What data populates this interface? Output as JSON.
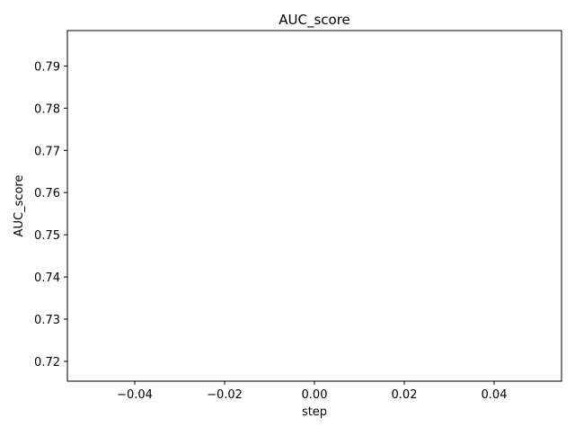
{
  "chart_data": {
    "type": "line",
    "title": "AUC_score",
    "xlabel": "step",
    "ylabel": "AUC_score",
    "xlim": [
      -0.055,
      0.055
    ],
    "ylim": [
      0.7153,
      0.7984
    ],
    "x_ticks": [
      -0.04,
      -0.02,
      0.0,
      0.02,
      0.04
    ],
    "x_tick_labels": [
      "−0.04",
      "−0.02",
      "0.00",
      "0.02",
      "0.04"
    ],
    "y_ticks": [
      0.72,
      0.73,
      0.74,
      0.75,
      0.76,
      0.77,
      0.78,
      0.79
    ],
    "y_tick_labels": [
      "0.72",
      "0.73",
      "0.74",
      "0.75",
      "0.76",
      "0.77",
      "0.78",
      "0.79"
    ],
    "grid": false,
    "series": [
      {
        "x": [],
        "values": []
      }
    ],
    "colors": {
      "axes": "#000000",
      "background": "#ffffff",
      "line": "#1f77b4"
    }
  }
}
